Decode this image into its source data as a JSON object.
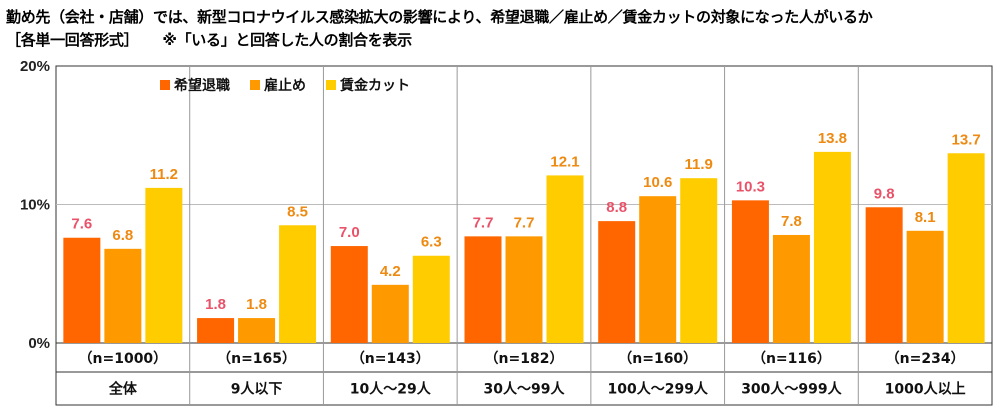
{
  "title": {
    "line1": "勤め先（会社・店舗）では、新型コロナウイルス感染拡大の影響により、希望退職／雇止め／賃金カットの対象になった人がいるか",
    "line2": "［各単一回答形式］",
    "note": "※「いる」と回答した人の割合を表示"
  },
  "chart_data": {
    "type": "bar",
    "categories": [
      "全体",
      "9人以下",
      "10人～29人",
      "30人～99人",
      "100人～299人",
      "300人～999人",
      "1000人以上"
    ],
    "sample_sizes": [
      "（n=1000）",
      "（n=165）",
      "（n=143）",
      "（n=182）",
      "（n=160）",
      "（n=116）",
      "（n=234）"
    ],
    "series": [
      {
        "name": "希望退職",
        "values": [
          7.6,
          1.8,
          7.0,
          7.7,
          8.8,
          10.3,
          9.8
        ],
        "color": "#FF6600",
        "label_color": "#E9536A"
      },
      {
        "name": "雇止め",
        "values": [
          6.8,
          1.8,
          4.2,
          7.7,
          10.6,
          7.8,
          8.1
        ],
        "color": "#FF9900",
        "label_color": "#ED8A12"
      },
      {
        "name": "賃金カット",
        "values": [
          11.2,
          8.5,
          6.3,
          12.1,
          11.9,
          13.8,
          13.7
        ],
        "color": "#FFCC00",
        "label_color": "#ED8A12"
      }
    ],
    "yticks": [
      "0%",
      "10%",
      "20%"
    ],
    "ylim": [
      0,
      20
    ],
    "legend": "top-left",
    "grid": true
  }
}
